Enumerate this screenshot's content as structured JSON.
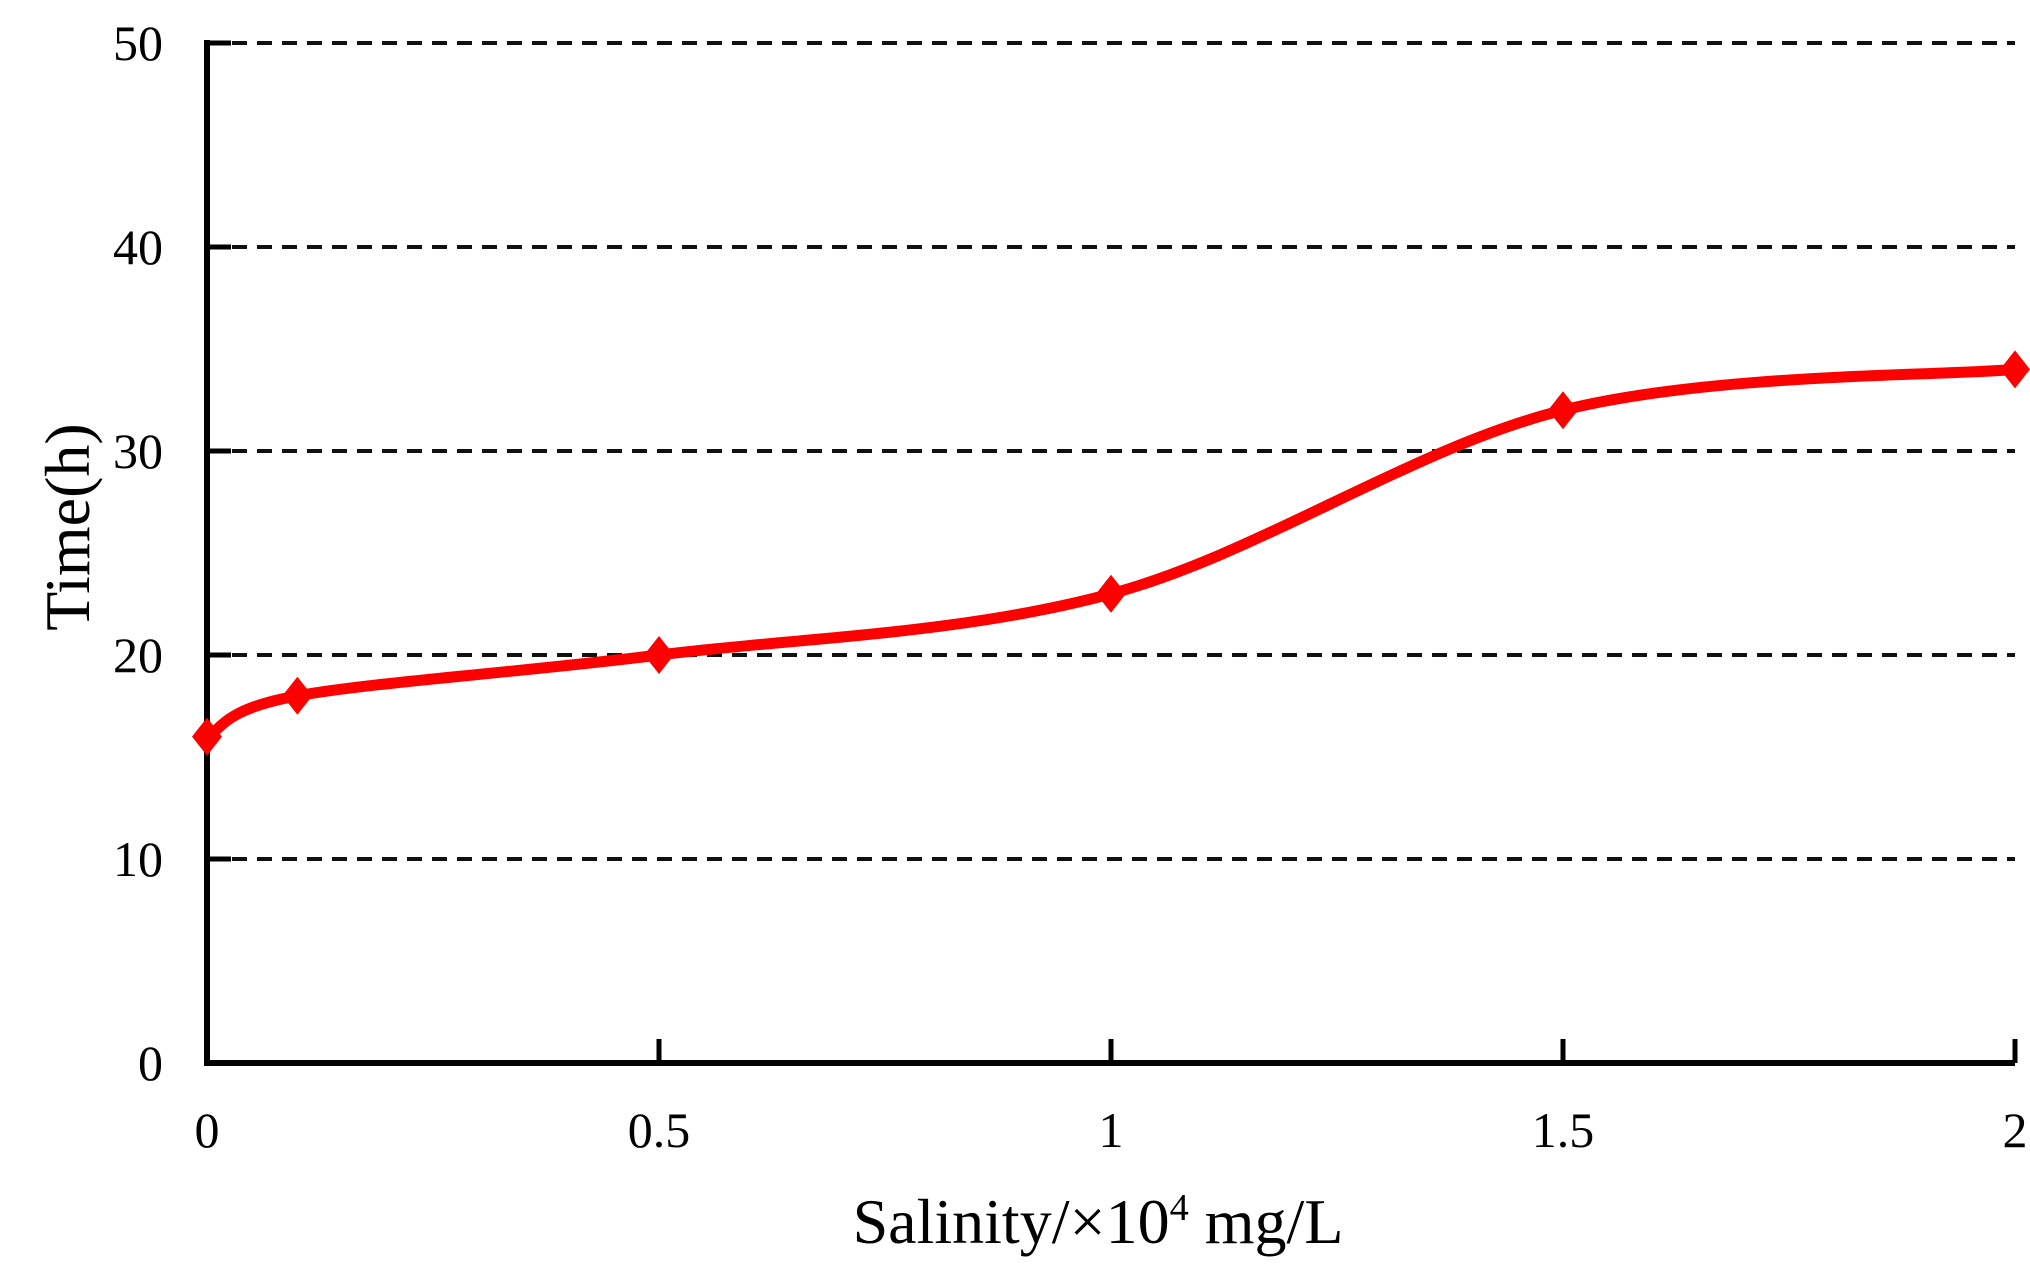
{
  "chart_data": {
    "type": "line",
    "title": "",
    "xlabel": "Salinity/×10⁴ mg/L",
    "xlabel_parts": {
      "prefix": "Salinity/×10",
      "superscript": "4",
      "suffix": " mg/L"
    },
    "ylabel": "Time(h)",
    "x": [
      0,
      0.1,
      0.5,
      1,
      1.5,
      2
    ],
    "y": [
      16,
      18,
      20,
      23,
      32,
      34
    ],
    "xlim": [
      0,
      2
    ],
    "ylim": [
      0,
      50
    ],
    "x_ticks": [
      0,
      0.5,
      1,
      1.5,
      2
    ],
    "x_tick_labels": [
      "0",
      "0.5",
      "1",
      "1.5",
      "2"
    ],
    "y_ticks": [
      0,
      10,
      20,
      30,
      40,
      50
    ],
    "y_tick_labels": [
      "0",
      "10",
      "20",
      "30",
      "40",
      "50"
    ],
    "gridlines_y": [
      10,
      20,
      30,
      40,
      50
    ],
    "grid_style": "dashed",
    "legend_position": "none",
    "line_color": "#ff0000",
    "marker": "diamond",
    "axis_color": "#000000",
    "background_color": "#ffffff"
  }
}
